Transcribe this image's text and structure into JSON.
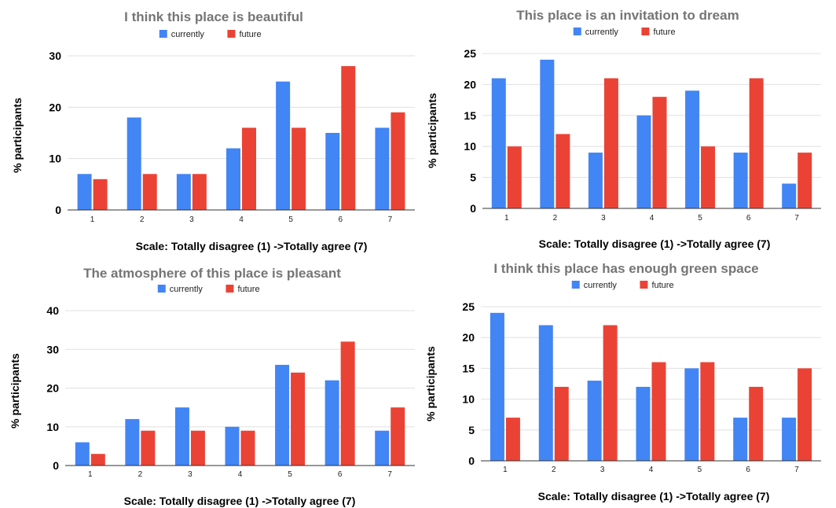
{
  "colors": {
    "currently": "#4285f4",
    "future": "#ea4335"
  },
  "chart_data": [
    {
      "type": "bar",
      "title": "I think this place is beautiful",
      "xlabel": "Scale: Totally disagree (1) ->Totally agree (7)",
      "ylabel": "% participants",
      "categories": [
        "1",
        "2",
        "3",
        "4",
        "5",
        "6",
        "7"
      ],
      "ylim": [
        0,
        30
      ],
      "yticks": [
        0,
        10,
        20,
        30
      ],
      "legend_position": "top",
      "grid": true,
      "series": [
        {
          "name": "currently",
          "values": [
            7,
            18,
            7,
            12,
            25,
            15,
            16
          ]
        },
        {
          "name": "future",
          "values": [
            6,
            7,
            7,
            16,
            16,
            28,
            19
          ]
        }
      ]
    },
    {
      "type": "bar",
      "title": "This place is an invitation to dream",
      "xlabel": "Scale: Totally disagree (1) ->Totally agree (7)",
      "ylabel": "% participants",
      "categories": [
        "1",
        "2",
        "3",
        "4",
        "5",
        "6",
        "7"
      ],
      "ylim": [
        0,
        25
      ],
      "yticks": [
        0,
        5,
        10,
        15,
        20,
        25
      ],
      "legend_position": "top",
      "grid": true,
      "series": [
        {
          "name": "currently",
          "values": [
            21,
            24,
            9,
            15,
            19,
            9,
            4
          ]
        },
        {
          "name": "future",
          "values": [
            10,
            12,
            21,
            18,
            10,
            21,
            9
          ]
        }
      ]
    },
    {
      "type": "bar",
      "title": "The atmosphere of this place is pleasant",
      "xlabel": "Scale: Totally disagree (1) ->Totally agree (7)",
      "ylabel": "% participants",
      "categories": [
        "1",
        "2",
        "3",
        "4",
        "5",
        "6",
        "7"
      ],
      "ylim": [
        0,
        40
      ],
      "yticks": [
        0,
        10,
        20,
        30,
        40
      ],
      "legend_position": "top",
      "grid": true,
      "series": [
        {
          "name": "currently",
          "values": [
            6,
            12,
            15,
            10,
            26,
            22,
            9
          ]
        },
        {
          "name": "future",
          "values": [
            3,
            9,
            9,
            9,
            24,
            32,
            15
          ]
        }
      ]
    },
    {
      "type": "bar",
      "title": "I think this place has enough green space",
      "xlabel": "Scale: Totally disagree (1) ->Totally agree (7)",
      "ylabel": "% participants",
      "categories": [
        "1",
        "2",
        "3",
        "4",
        "5",
        "6",
        "7"
      ],
      "ylim": [
        0,
        25
      ],
      "yticks": [
        0,
        5,
        10,
        15,
        20,
        25
      ],
      "legend_position": "top",
      "grid": true,
      "series": [
        {
          "name": "currently",
          "values": [
            24,
            22,
            13,
            12,
            15,
            7,
            7
          ]
        },
        {
          "name": "future",
          "values": [
            7,
            12,
            22,
            16,
            16,
            12,
            15
          ]
        }
      ]
    }
  ]
}
